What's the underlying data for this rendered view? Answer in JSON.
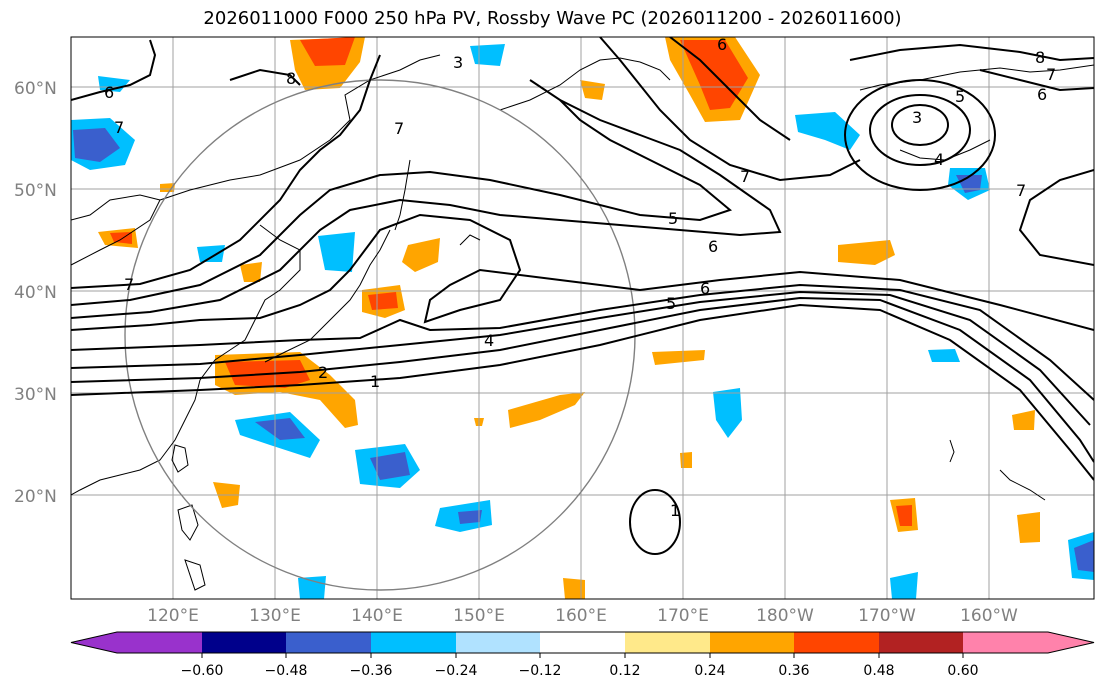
{
  "title": "2026011000 F000 250 hPa PV, Rossby Wave PC (2026011200 - 2026011600)",
  "lat_labels": [
    "20°N",
    "30°N",
    "40°N",
    "50°N",
    "60°N"
  ],
  "lon_labels": [
    "120°E",
    "130°E",
    "140°E",
    "150°E",
    "160°E",
    "170°E",
    "180°W",
    "170°W",
    "160°W"
  ],
  "colorbar": {
    "ticks": [
      "−0.60",
      "−0.48",
      "−0.36",
      "−0.24",
      "−0.12",
      "0.12",
      "0.24",
      "0.36",
      "0.48",
      "0.60"
    ],
    "colors": [
      "#9932cc",
      "#00008b",
      "#3a5fcd",
      "#00bfff",
      "#b0e2ff",
      "#ffffff",
      "#ffe98a",
      "#ffa500",
      "#ff4500",
      "#b22222",
      "#ff82ab"
    ]
  },
  "contour_labels": [
    "1",
    "2",
    "3",
    "4",
    "5",
    "6",
    "7",
    "8"
  ],
  "colors": {
    "contour": "#000000",
    "coast": "#000000",
    "grid": "#a0a0a0",
    "circle": "#808080"
  }
}
